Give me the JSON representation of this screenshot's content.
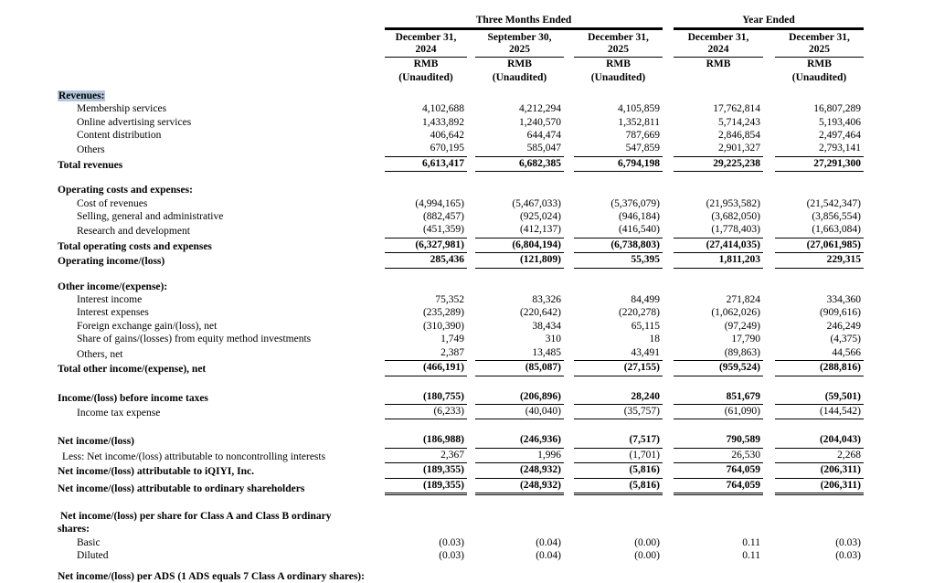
{
  "colors": {
    "selection_highlight": "#b5c7dc"
  },
  "header": {
    "groups": [
      {
        "label": "Three Months Ended"
      },
      {
        "label": "Year Ended"
      }
    ],
    "columns": [
      {
        "date_line1": "December 31,",
        "date_line2": "2024",
        "currency": "RMB",
        "note": "(Unaudited)"
      },
      {
        "date_line1": "September 30,",
        "date_line2": "2025",
        "currency": "RMB",
        "note": "(Unaudited)"
      },
      {
        "date_line1": "December 31,",
        "date_line2": "2025",
        "currency": "RMB",
        "note": "(Unaudited)"
      },
      {
        "date_line1": "December 31,",
        "date_line2": "2024",
        "currency": "RMB",
        "note": ""
      },
      {
        "date_line1": "December 31,",
        "date_line2": "2025",
        "currency": "RMB",
        "note": "(Unaudited)"
      }
    ]
  },
  "rows": [
    {
      "style": "section",
      "label": "Revenues:",
      "highlight": true
    },
    {
      "style": "item",
      "label": "Membership services",
      "values": [
        "4,102,688",
        "4,212,294",
        "4,105,859",
        "17,762,814",
        "16,807,289"
      ]
    },
    {
      "style": "item",
      "label": "Online advertising services",
      "values": [
        "1,433,892",
        "1,240,570",
        "1,352,811",
        "5,714,243",
        "5,193,406"
      ]
    },
    {
      "style": "item",
      "label": "Content distribution",
      "values": [
        "406,642",
        "644,474",
        "787,669",
        "2,846,854",
        "2,497,464"
      ]
    },
    {
      "style": "item",
      "label": "Others",
      "values": [
        "670,195",
        "585,047",
        "547,859",
        "2,901,327",
        "2,793,141"
      ],
      "rule": "single"
    },
    {
      "style": "total",
      "label": "Total revenues",
      "values": [
        "6,613,417",
        "6,682,385",
        "6,794,198",
        "29,225,238",
        "27,291,300"
      ],
      "rule": "single"
    },
    {
      "type": "spacer",
      "h": 13
    },
    {
      "style": "section",
      "label": "Operating costs and expenses:"
    },
    {
      "style": "item",
      "label": "Cost of revenues",
      "values": [
        "(4,994,165)",
        "(5,467,033)",
        "(5,376,079)",
        "(21,953,582)",
        "(21,542,347)"
      ]
    },
    {
      "style": "item",
      "label": "Selling, general and administrative",
      "values": [
        "(882,457)",
        "(925,024)",
        "(946,184)",
        "(3,682,050)",
        "(3,856,554)"
      ]
    },
    {
      "style": "item",
      "label": "Research and development",
      "values": [
        "(451,359)",
        "(412,137)",
        "(416,540)",
        "(1,778,403)",
        "(1,663,084)"
      ],
      "rule": "single"
    },
    {
      "style": "total",
      "label": "Total operating costs and expenses",
      "values": [
        "(6,327,981)",
        "(6,804,194)",
        "(6,738,803)",
        "(27,414,035)",
        "(27,061,985)"
      ],
      "rule": "single"
    },
    {
      "style": "total",
      "label": "Operating income/(loss)",
      "values": [
        "285,436",
        "(121,809)",
        "55,395",
        "1,811,203",
        "229,315"
      ],
      "rule": "single"
    },
    {
      "type": "spacer",
      "h": 13
    },
    {
      "style": "section",
      "label": "Other income/(expense):"
    },
    {
      "style": "item",
      "label": "Interest income",
      "values": [
        "75,352",
        "83,326",
        "84,499",
        "271,824",
        "334,360"
      ]
    },
    {
      "style": "item",
      "label": "Interest expenses",
      "values": [
        "(235,289)",
        "(220,642)",
        "(220,278)",
        "(1,062,026)",
        "(909,616)"
      ]
    },
    {
      "style": "item",
      "label": "Foreign exchange gain/(loss), net",
      "values": [
        "(310,390)",
        "38,434",
        "65,115",
        "(97,249)",
        "246,249"
      ]
    },
    {
      "style": "item",
      "label": "Share of gains/(losses) from equity method investments",
      "values": [
        "1,749",
        "310",
        "18",
        "17,790",
        "(4,375)"
      ]
    },
    {
      "style": "item",
      "label": "Others, net",
      "values": [
        "2,387",
        "13,485",
        "43,491",
        "(89,863)",
        "44,566"
      ],
      "rule": "single"
    },
    {
      "style": "total",
      "label": "Total other income/(expense), net",
      "values": [
        "(466,191)",
        "(85,087)",
        "(27,155)",
        "(959,524)",
        "(288,816)"
      ],
      "rule": "single"
    },
    {
      "type": "spacer",
      "h": 15
    },
    {
      "style": "total",
      "label": "Income/(loss) before income taxes",
      "values": [
        "(180,755)",
        "(206,896)",
        "28,240",
        "851,679",
        "(59,501)"
      ],
      "rule": "single"
    },
    {
      "style": "item",
      "label": "Income tax expense",
      "values": [
        "(6,233)",
        "(40,040)",
        "(35,757)",
        "(61,090)",
        "(144,542)"
      ],
      "rule": "single"
    },
    {
      "type": "spacer",
      "h": 15
    },
    {
      "style": "total",
      "label": "Net income/(loss)",
      "values": [
        "(186,988)",
        "(246,936)",
        "(7,517)",
        "790,589",
        "(204,043)"
      ],
      "rule": "single"
    },
    {
      "style": "less",
      "label": "Less: Net income/(loss) attributable to noncontrolling interests",
      "values": [
        "2,367",
        "1,996",
        "(1,701)",
        "26,530",
        "2,268"
      ],
      "rule": "single"
    },
    {
      "style": "total",
      "label": "Net income/(loss) attributable to iQIYI, Inc.",
      "values": [
        "(189,355)",
        "(248,932)",
        "(5,816)",
        "764,059",
        "(206,311)"
      ],
      "rule": "single"
    },
    {
      "style": "total",
      "label": "Net income/(loss) attributable to ordinary shareholders",
      "values": [
        "(189,355)",
        "(248,932)",
        "(5,816)",
        "764,059",
        "(206,311)"
      ],
      "rule": "double"
    },
    {
      "type": "spacer",
      "h": 16
    },
    {
      "style": "wrap",
      "label": "Net income/(loss) per share for Class A and Class B ordinary shares:"
    },
    {
      "style": "item",
      "label": "Basic",
      "values": [
        "(0.03)",
        "(0.04)",
        "(0.00)",
        "0.11",
        "(0.03)"
      ]
    },
    {
      "style": "item",
      "label": "Diluted",
      "values": [
        "(0.03)",
        "(0.04)",
        "(0.00)",
        "0.11",
        "(0.03)"
      ]
    },
    {
      "type": "spacer",
      "h": 8
    },
    {
      "style": "section",
      "label": "Net income/(loss) per ADS (1 ADS equals 7 Class A ordinary shares):"
    }
  ]
}
